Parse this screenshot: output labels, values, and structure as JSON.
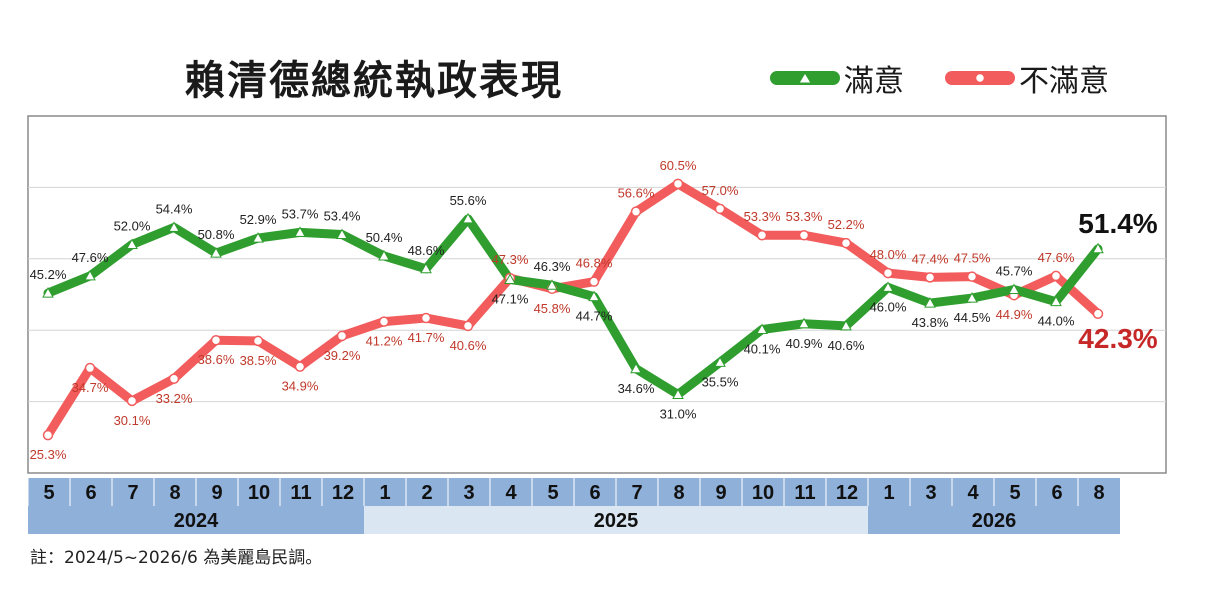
{
  "title": "賴清德總統執政表現",
  "footnote": "註：2024/5~2026/6 為美麗島民調。",
  "chart_data": {
    "type": "line",
    "title": "賴清德總統執政表現",
    "categories": [
      "5",
      "6",
      "7",
      "8",
      "9",
      "10",
      "11",
      "12",
      "1",
      "2",
      "3",
      "4",
      "5",
      "6",
      "7",
      "8",
      "9",
      "10",
      "11",
      "12",
      "1",
      "3",
      "4",
      "5",
      "6",
      "8"
    ],
    "years": [
      {
        "label": "2024",
        "start": 0,
        "end": 7
      },
      {
        "label": "2025",
        "start": 8,
        "end": 19
      },
      {
        "label": "2026",
        "start": 20,
        "end": 25
      }
    ],
    "series": [
      {
        "name": "滿意",
        "color": "#2f9e2f",
        "values": [
          45.2,
          47.6,
          52.0,
          54.4,
          50.8,
          52.9,
          53.7,
          53.4,
          50.4,
          48.6,
          55.6,
          47.1,
          46.3,
          44.7,
          34.6,
          31.0,
          35.5,
          40.1,
          40.9,
          40.6,
          46.0,
          43.8,
          44.5,
          45.7,
          44.0,
          51.4
        ],
        "labels": [
          "45.2%",
          "47.6%",
          "52.0%",
          "54.4%",
          "50.8%",
          "52.9%",
          "53.7%",
          "53.4%",
          "50.4%",
          "48.6%",
          "55.6%",
          "47.1%",
          "46.3%",
          "44.7%",
          "34.6%",
          "31.0%",
          "35.5%",
          "40.1%",
          "40.9%",
          "40.6%",
          "46.0%",
          "43.8%",
          "44.5%",
          "45.7%",
          "44.0%",
          "51.4%"
        ]
      },
      {
        "name": "不滿意",
        "color": "#f25c5c",
        "values": [
          25.3,
          34.7,
          30.1,
          33.2,
          38.6,
          38.5,
          34.9,
          39.2,
          41.2,
          41.7,
          40.6,
          47.3,
          45.8,
          46.8,
          56.6,
          60.5,
          57.0,
          53.3,
          53.3,
          52.2,
          48.0,
          47.4,
          47.5,
          44.9,
          47.6,
          42.3
        ],
        "labels": [
          "25.3%",
          "34.7%",
          "30.1%",
          "33.2%",
          "38.6%",
          "38.5%",
          "34.9%",
          "39.2%",
          "41.2%",
          "41.7%",
          "40.6%",
          "47.3%",
          "45.8%",
          "46.8%",
          "56.6%",
          "60.5%",
          "57.0%",
          "53.3%",
          "53.3%",
          "52.2%",
          "48.0%",
          "47.4%",
          "47.5%",
          "44.9%",
          "47.6%",
          "42.3%"
        ]
      }
    ],
    "ylim": [
      20,
      70
    ],
    "grid": true,
    "legend_position": "top-right"
  }
}
